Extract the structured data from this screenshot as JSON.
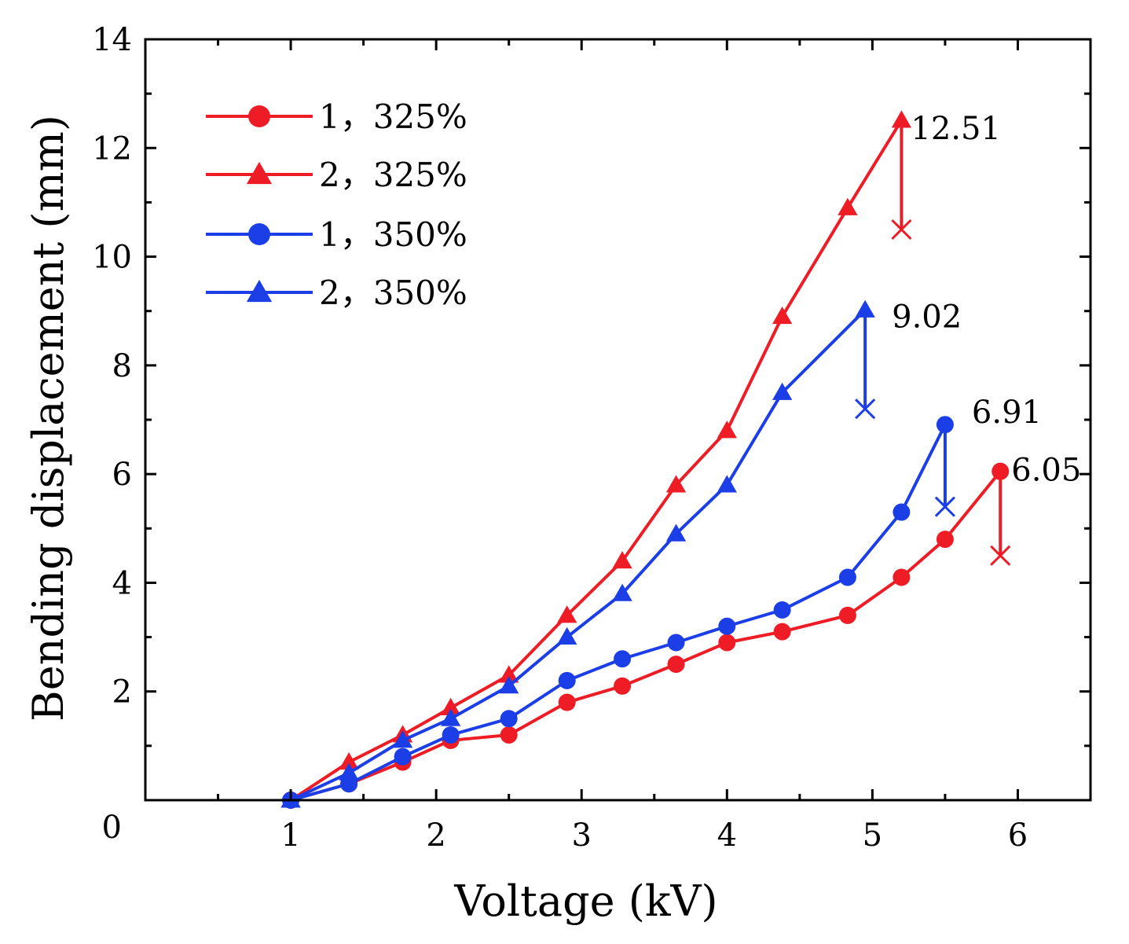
{
  "chart_data": {
    "type": "line",
    "xlabel": "Voltage (kV)",
    "ylabel": "Bending displacement (mm)",
    "xlim": [
      0,
      6.5
    ],
    "ylim": [
      0,
      14
    ],
    "xticks": [
      1,
      2,
      3,
      4,
      5,
      6
    ],
    "yticks": [
      0,
      2,
      4,
      6,
      8,
      10,
      12,
      14
    ],
    "grid": false,
    "legend_position": "top-left",
    "series": [
      {
        "name": "1，325%",
        "color": "#ee1c25",
        "marker": "circle",
        "x": [
          1.0,
          1.4,
          1.77,
          2.1,
          2.5,
          2.9,
          3.28,
          3.65,
          4.0,
          4.38,
          4.83,
          5.2,
          5.5,
          5.88
        ],
        "y": [
          0.0,
          0.3,
          0.7,
          1.1,
          1.2,
          1.8,
          2.1,
          2.5,
          2.9,
          3.1,
          3.4,
          4.1,
          4.8,
          6.05
        ],
        "breakdown": {
          "x": 5.88,
          "y": 4.5
        },
        "peak_label": "6.05"
      },
      {
        "name": "2，325%",
        "color": "#ee1c25",
        "marker": "triangle",
        "x": [
          1.0,
          1.4,
          1.77,
          2.1,
          2.5,
          2.9,
          3.28,
          3.65,
          4.0,
          4.38,
          4.83,
          5.2
        ],
        "y": [
          0.0,
          0.7,
          1.2,
          1.7,
          2.3,
          3.4,
          4.4,
          5.8,
          6.8,
          8.9,
          10.9,
          12.51
        ],
        "breakdown": {
          "x": 5.2,
          "y": 10.5
        },
        "peak_label": "12.51"
      },
      {
        "name": "1，350%",
        "color": "#1b3ee6",
        "marker": "circle",
        "x": [
          1.0,
          1.4,
          1.77,
          2.1,
          2.5,
          2.9,
          3.28,
          3.65,
          4.0,
          4.38,
          4.83,
          5.2,
          5.5
        ],
        "y": [
          0.0,
          0.3,
          0.8,
          1.2,
          1.5,
          2.2,
          2.6,
          2.9,
          3.2,
          3.5,
          4.1,
          5.3,
          6.91
        ],
        "breakdown": {
          "x": 5.5,
          "y": 5.4
        },
        "peak_label": "6.91"
      },
      {
        "name": "2，350%",
        "color": "#1b3ee6",
        "marker": "triangle",
        "x": [
          1.0,
          1.4,
          1.77,
          2.1,
          2.5,
          2.9,
          3.28,
          3.65,
          4.0,
          4.38,
          4.95
        ],
        "y": [
          0.0,
          0.5,
          1.1,
          1.5,
          2.1,
          3.0,
          3.8,
          4.9,
          5.8,
          7.5,
          9.02
        ],
        "breakdown": {
          "x": 4.95,
          "y": 7.2
        },
        "peak_label": "9.02"
      }
    ]
  }
}
